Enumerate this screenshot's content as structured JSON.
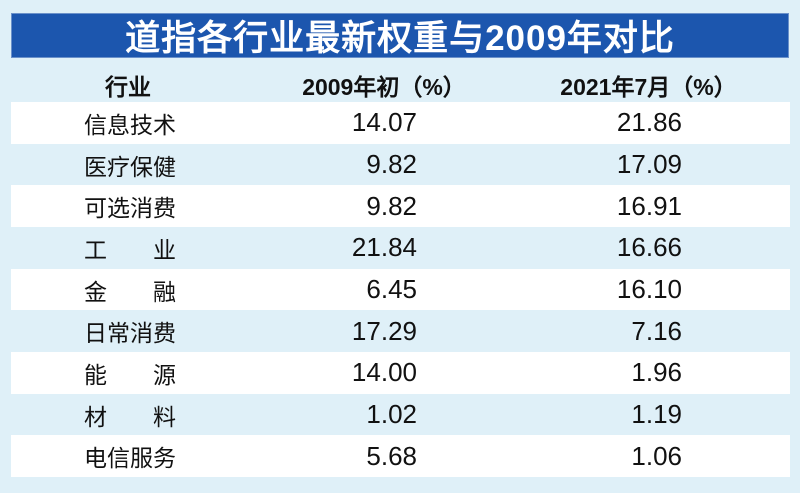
{
  "title": "道指各行业最新权重与2009年对比",
  "table": {
    "headers": {
      "industry": "行业",
      "col2009": "2009年初（%）",
      "col2021": "2021年7月（%）"
    },
    "rows": [
      {
        "industry": "信息技术",
        "v2009": "14.07",
        "v2021": "21.86"
      },
      {
        "industry": "医疗保健",
        "v2009": "9.82",
        "v2021": "17.09"
      },
      {
        "industry": "可选消费",
        "v2009": "9.82",
        "v2021": "16.91"
      },
      {
        "industry": "工　业",
        "v2009": "21.84",
        "v2021": "16.66"
      },
      {
        "industry": "金　融",
        "v2009": "6.45",
        "v2021": "16.10"
      },
      {
        "industry": "日常消费",
        "v2009": "17.29",
        "v2021": "7.16"
      },
      {
        "industry": "能　源",
        "v2009": "14.00",
        "v2021": "1.96"
      },
      {
        "industry": "材　料",
        "v2009": "1.02",
        "v2021": "1.19"
      },
      {
        "industry": "电信服务",
        "v2009": "5.68",
        "v2021": "1.06"
      }
    ]
  },
  "chart_data": {
    "type": "table",
    "title": "道指各行业最新权重与2009年对比",
    "categories": [
      "信息技术",
      "医疗保健",
      "可选消费",
      "工业",
      "金融",
      "日常消费",
      "能源",
      "材料",
      "电信服务"
    ],
    "series": [
      {
        "name": "2009年初（%）",
        "values": [
          14.07,
          9.82,
          9.82,
          21.84,
          6.45,
          17.29,
          14.0,
          1.02,
          5.68
        ]
      },
      {
        "name": "2021年7月（%）",
        "values": [
          21.86,
          17.09,
          16.91,
          16.66,
          16.1,
          7.16,
          1.96,
          1.19,
          1.06
        ]
      }
    ],
    "legend_position": "header-row",
    "grid": false
  },
  "colors": {
    "banner_bg": "#1c56ae",
    "page_bg": "#dff0f8",
    "row_stripe": "#ffffff",
    "title_text": "#ffffff",
    "body_text": "#111111"
  }
}
